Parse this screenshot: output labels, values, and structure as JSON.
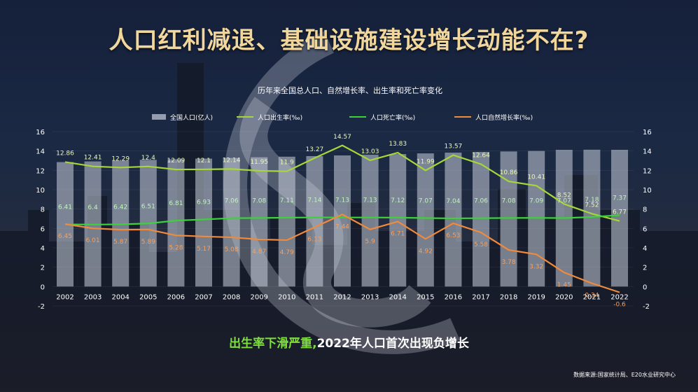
{
  "slide": {
    "title": "人口红利减退、基础设施建设增长动能不在?",
    "subtitle_green": "出生率下滑严重,",
    "subtitle_white": "2022年人口首次出现负增长",
    "source": "数据来源:国家统计局、E20水业研究中心"
  },
  "colors": {
    "bar": "#c9cfdc",
    "birth": "#a6d63a",
    "death": "#3dd13a",
    "natural": "#f08a3c",
    "title": "#f2d79c"
  },
  "chart_data": {
    "type": "bar",
    "title": "历年来全国总人口、自然增长率、出生率和死亡率变化",
    "categories": [
      "2002",
      "2003",
      "2004",
      "2005",
      "2006",
      "2007",
      "2008",
      "2009",
      "2010",
      "2011",
      "2012",
      "2013",
      "2014",
      "2015",
      "2016",
      "2017",
      "2018",
      "2019",
      "2020",
      "2021",
      "2022"
    ],
    "ylim": [
      -2,
      16
    ],
    "yticks": [
      -2,
      0,
      2,
      4,
      6,
      8,
      10,
      12,
      14,
      16
    ],
    "right_ylim": [
      -2,
      16
    ],
    "right_yticks": [
      -2,
      0,
      2,
      4,
      6,
      8,
      10,
      12,
      14,
      16
    ],
    "legend_position": "top",
    "series": [
      {
        "name": "全国人口(亿人)",
        "kind": "bar",
        "values": [
          12.85,
          12.92,
          13.0,
          13.08,
          13.14,
          13.21,
          13.28,
          13.35,
          13.41,
          13.47,
          13.54,
          13.61,
          13.68,
          13.75,
          13.83,
          13.9,
          13.95,
          14.0,
          14.12,
          14.13,
          14.12
        ]
      },
      {
        "name": "人口出生率(‰)",
        "kind": "line",
        "values": [
          12.86,
          12.41,
          12.29,
          12.4,
          12.09,
          12.1,
          12.14,
          11.95,
          11.9,
          13.27,
          14.57,
          13.03,
          13.83,
          11.99,
          13.57,
          12.64,
          10.86,
          10.41,
          8.52,
          7.52,
          6.77
        ],
        "labels": [
          "12.86",
          "12.41",
          "12.29",
          "12.4",
          "12.09",
          "12.1",
          "12.14",
          "11.95",
          "11.9",
          "13.27",
          "14.57",
          "13.03",
          "13.83",
          "11.99",
          "13.57",
          "12.64",
          "10.86",
          "10.41",
          "8.52",
          "7.52",
          "6.77"
        ]
      },
      {
        "name": "人口死亡率(‰)",
        "kind": "line",
        "values": [
          6.41,
          6.4,
          6.42,
          6.51,
          6.81,
          6.93,
          7.06,
          7.08,
          7.11,
          7.14,
          7.13,
          7.13,
          7.12,
          7.07,
          7.04,
          7.06,
          7.08,
          7.09,
          7.07,
          7.18,
          7.37
        ],
        "labels": [
          "6.41",
          "6.4",
          "6.42",
          "6.51",
          "6.81",
          "6.93",
          "7.06",
          "7.08",
          "7.11",
          "7.14",
          "7.13",
          "7.13",
          "7.12",
          "7.07",
          "7.04",
          "7.06",
          "7.08",
          "7.09",
          "7.07",
          "7.18",
          "7.37"
        ]
      },
      {
        "name": "人口自然增长率(‰)",
        "kind": "line",
        "values": [
          6.45,
          6.01,
          5.87,
          5.89,
          5.28,
          5.17,
          5.08,
          4.87,
          4.79,
          6.13,
          7.44,
          5.9,
          6.71,
          4.92,
          6.53,
          5.58,
          3.78,
          3.32,
          1.45,
          0.34,
          -0.6
        ],
        "labels": [
          "6.45",
          "6.01",
          "5.87",
          "5.89",
          "5.28",
          "5.17",
          "5.08",
          "4.87",
          "4.79",
          "6.13",
          "7.44",
          "5.9",
          "6.71",
          "4.92",
          "6.53",
          "5.58",
          "3.78",
          "3.32",
          "1.45",
          "0.34",
          "-0.6"
        ]
      }
    ]
  }
}
